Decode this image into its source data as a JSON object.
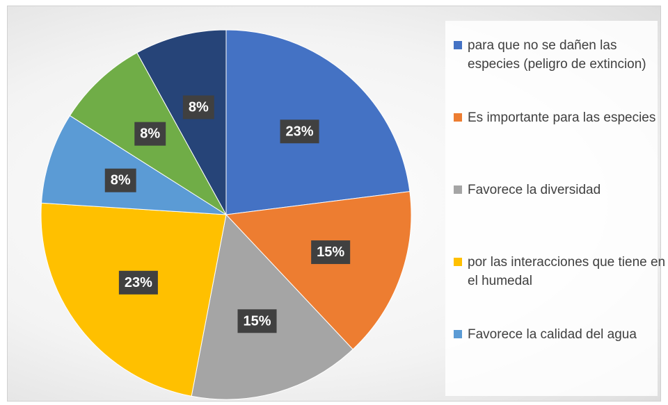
{
  "chart_data": {
    "type": "pie",
    "categories": [
      "para que no se dañen las especies (peligro de extincion)",
      "Es importante para las especies",
      "Favorece la diversidad",
      "por las interacciones que tiene en el humedal",
      "Favorece la calidad del agua",
      null,
      null
    ],
    "values": [
      23,
      15,
      15,
      23,
      8,
      8,
      8
    ],
    "value_labels": [
      "23%",
      "15%",
      "15%",
      "23%",
      "8%",
      "8%",
      "8%"
    ],
    "colors": [
      "#4472c4",
      "#ed7d31",
      "#a5a5a5",
      "#ffc000",
      "#5b9bd5",
      "#70ad47",
      "#264478"
    ],
    "legend": "right"
  }
}
